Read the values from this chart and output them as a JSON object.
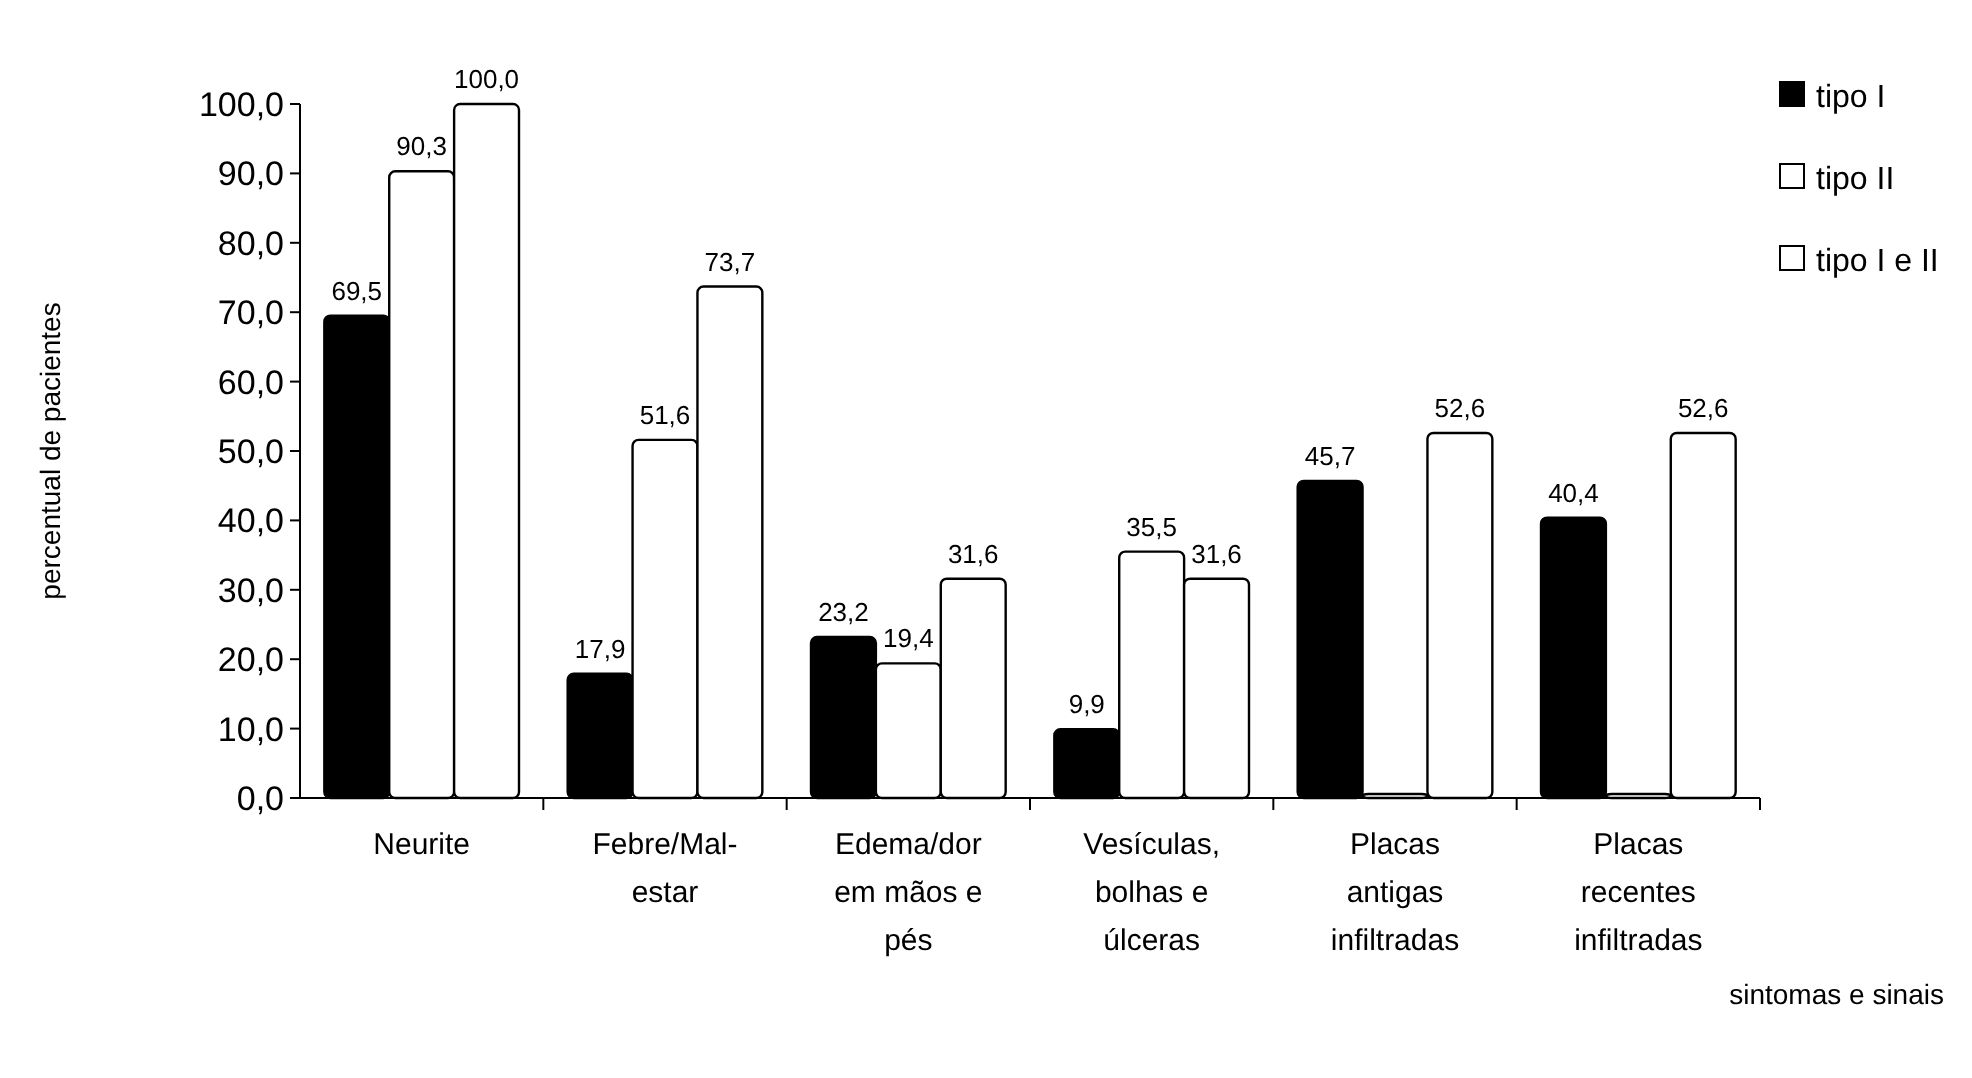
{
  "chart_data": {
    "type": "bar",
    "ylabel": "percentual de pacientes",
    "xlabel": "sintomas e sinais",
    "categories": [
      "Neurite",
      "Febre/Mal-estar",
      "Edema/dor em mãos e pés",
      "Vesículas, bolhas e úlceras",
      "Placas antigas infiltradas",
      "Placas recentes infiltradas"
    ],
    "series": [
      {
        "name": "tipo I",
        "color": "#000000",
        "values": [
          69.5,
          17.9,
          23.2,
          9.9,
          45.7,
          40.4
        ],
        "value_labels": [
          "69,5",
          "17,9",
          "23,2",
          "9,9",
          "45,7",
          "40,4"
        ]
      },
      {
        "name": "tipo II",
        "color": "#ffffff",
        "values": [
          90.3,
          51.6,
          19.4,
          35.5,
          0,
          0
        ],
        "value_labels": [
          "90,3",
          "51,6",
          "19,4",
          "35,5",
          null,
          null
        ]
      },
      {
        "name": "tipo I e II",
        "color": "#ffffff",
        "values": [
          100.0,
          73.7,
          31.6,
          31.6,
          52.6,
          52.6
        ],
        "value_labels": [
          "100,0",
          "73,7",
          "31,6",
          "31,6",
          "52,6",
          "52,6"
        ]
      }
    ],
    "ylim": [
      0,
      100
    ],
    "yticks": [
      {
        "value": 0,
        "label": "0,0"
      },
      {
        "value": 10,
        "label": "10,0"
      },
      {
        "value": 20,
        "label": "20,0"
      },
      {
        "value": 30,
        "label": "30,0"
      },
      {
        "value": 40,
        "label": "40,0"
      },
      {
        "value": 50,
        "label": "50,0"
      },
      {
        "value": 60,
        "label": "60,0"
      },
      {
        "value": 70,
        "label": "70,0"
      },
      {
        "value": 80,
        "label": "80,0"
      },
      {
        "value": 90,
        "label": "90,0"
      },
      {
        "value": 100,
        "label": "100,0"
      }
    ],
    "grid": false,
    "legend": "top right"
  }
}
